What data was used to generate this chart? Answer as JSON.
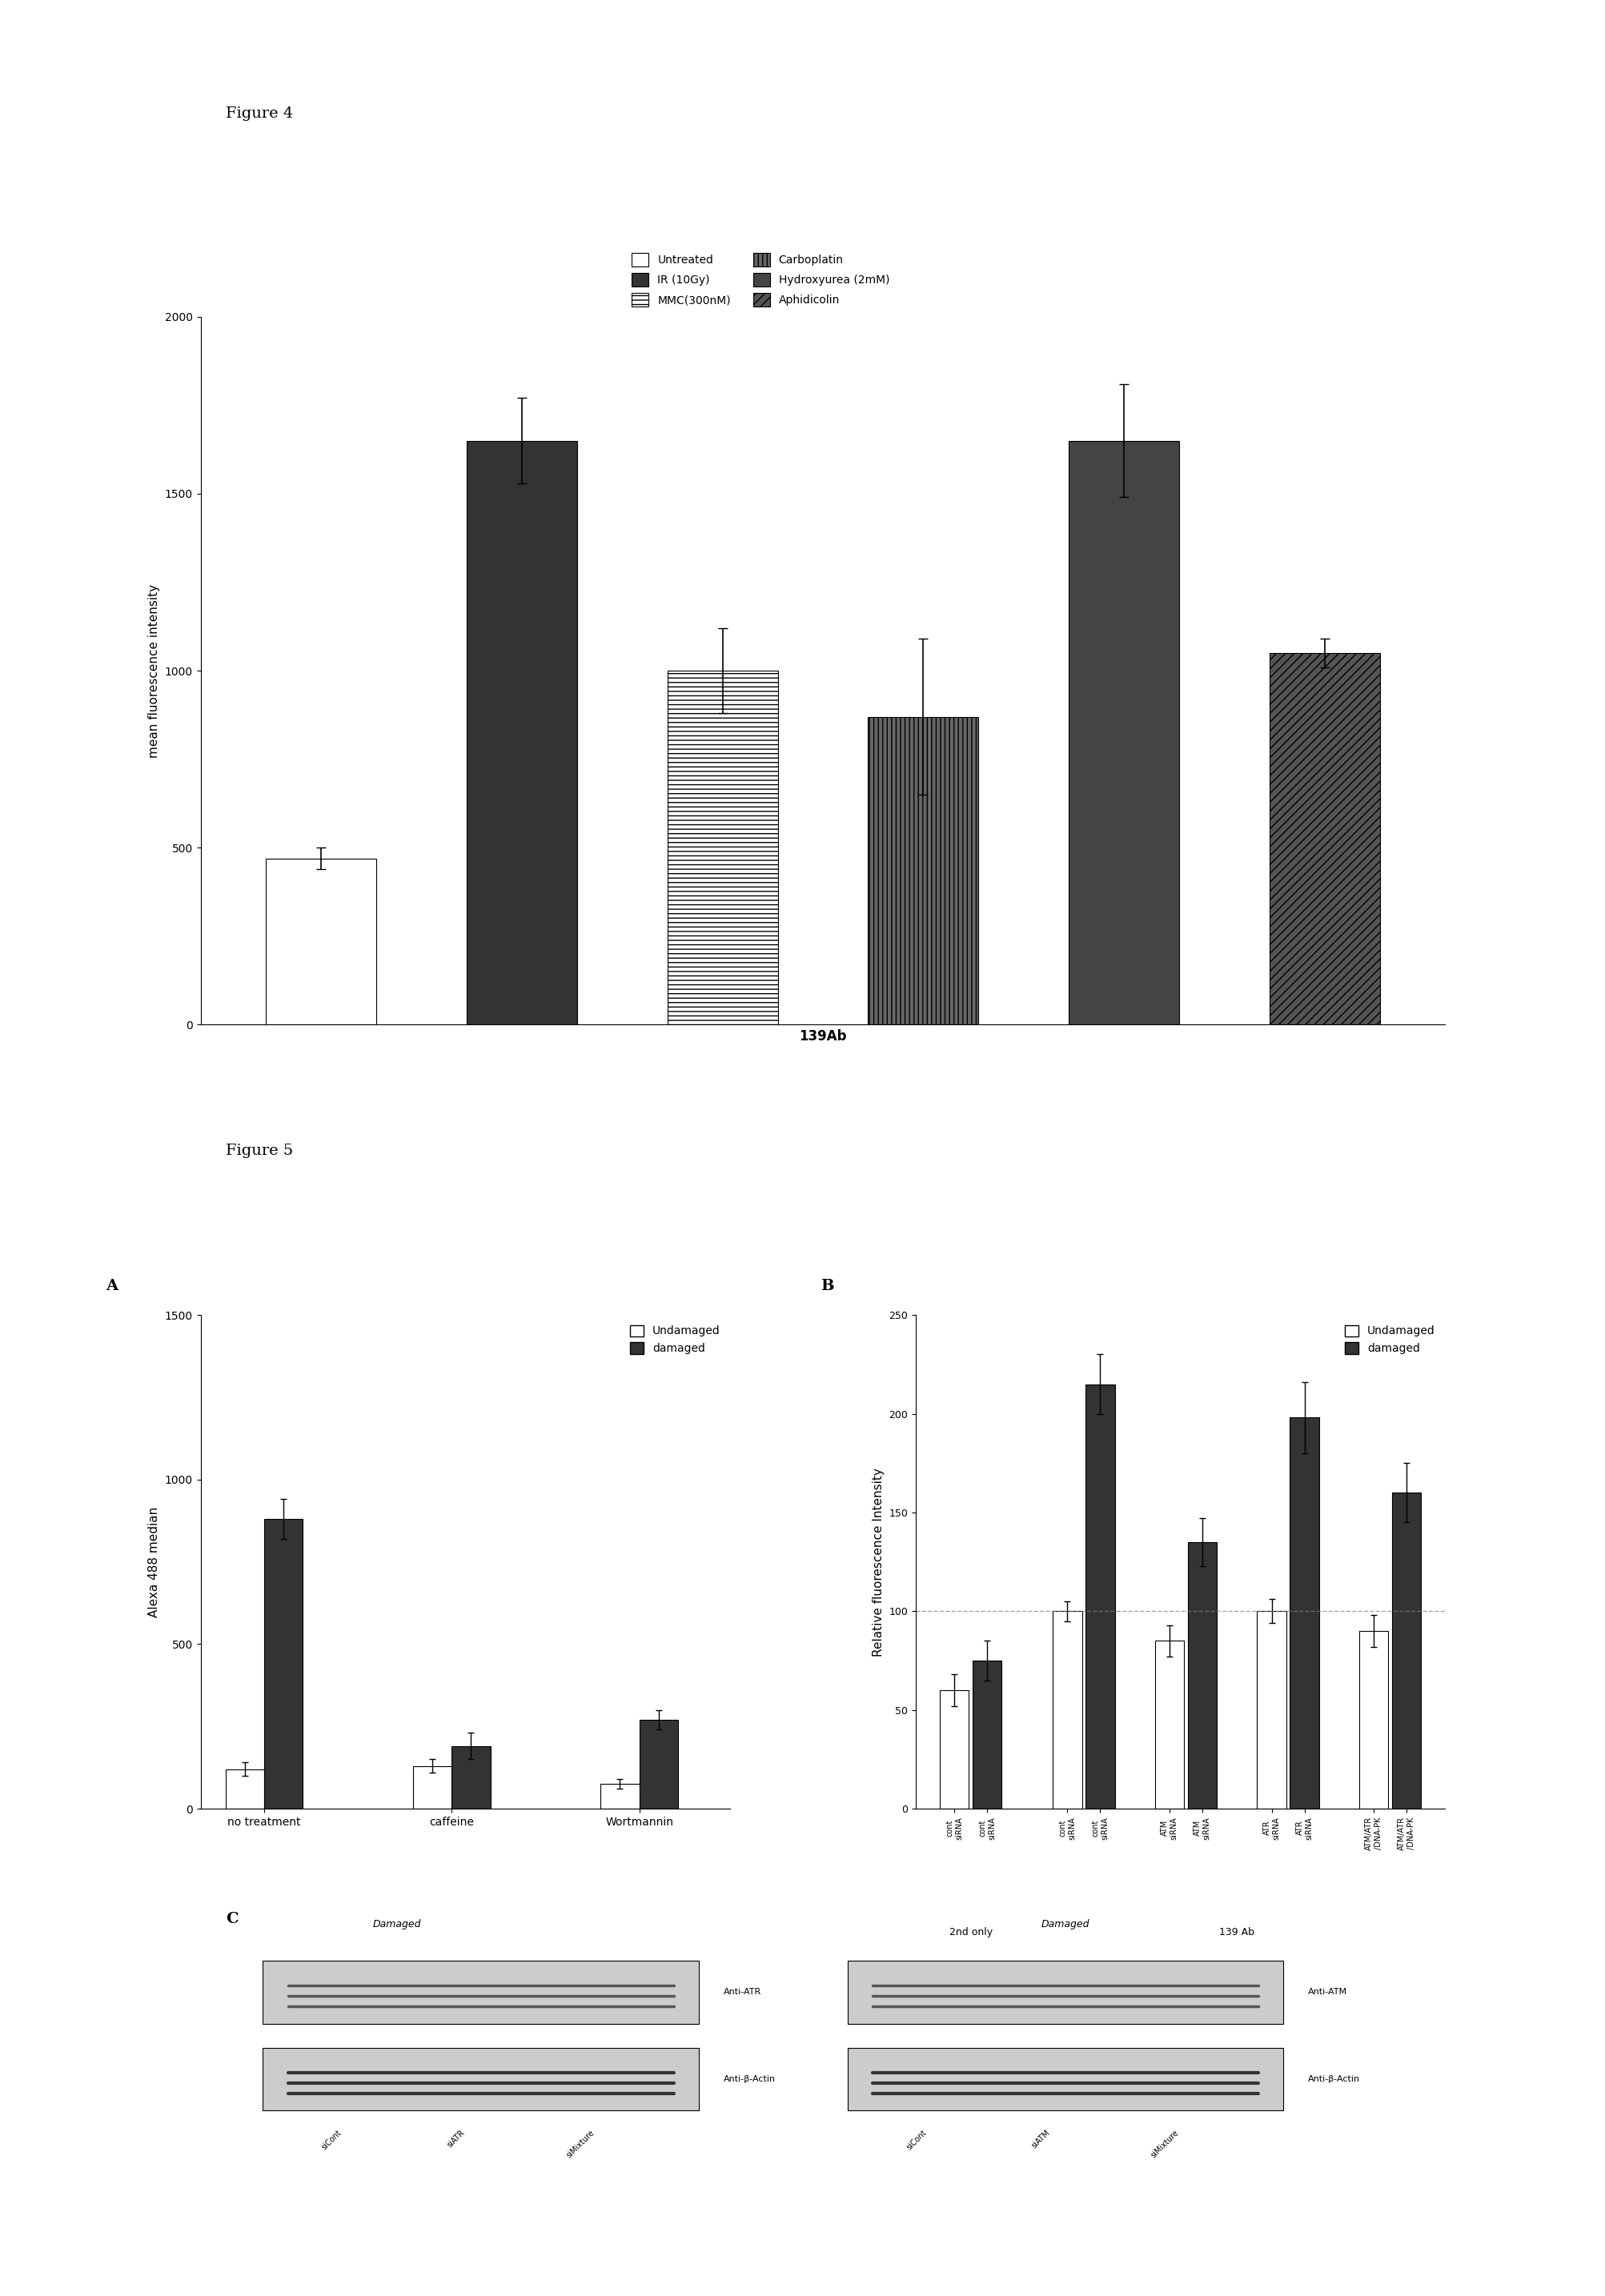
{
  "fig4": {
    "title": "Figure 4",
    "xlabel": "139Ab",
    "ylabel": "mean fluorescence intensity",
    "ylim": [
      0,
      2000
    ],
    "yticks": [
      0,
      500,
      1000,
      1500,
      2000
    ],
    "bars": [
      {
        "label": "Untreated",
        "value": 470,
        "error": 30,
        "color": "white",
        "hatch": "",
        "edgecolor": "black"
      },
      {
        "label": "IR (10Gy)",
        "value": 1650,
        "error": 120,
        "color": "#333333",
        "hatch": "",
        "edgecolor": "black"
      },
      {
        "label": "MMC(300nM)",
        "value": 1000,
        "error": 120,
        "color": "white",
        "hatch": "---",
        "edgecolor": "black"
      },
      {
        "label": "Carboplatin",
        "value": 870,
        "error": 220,
        "color": "#666666",
        "hatch": "|||",
        "edgecolor": "black"
      },
      {
        "label": "Hydroxyurea (2mM)",
        "value": 1650,
        "error": 160,
        "color": "#444444",
        "hatch": "",
        "edgecolor": "black"
      },
      {
        "label": "Aphidicolin",
        "value": 1050,
        "error": 40,
        "color": "#555555",
        "hatch": "///",
        "edgecolor": "black"
      }
    ],
    "legend_order": [
      0,
      1,
      2,
      3,
      4,
      5
    ]
  },
  "fig5a": {
    "panel": "A",
    "xlabel_groups": [
      "no treatment",
      "caffeine",
      "Wortmannin"
    ],
    "ylabel": "Alexa 488 median",
    "ylim": [
      0,
      1500
    ],
    "yticks": [
      0,
      500,
      1000,
      1500
    ],
    "groups": [
      {
        "name": "no treatment",
        "undamaged": 120,
        "undamaged_err": 20,
        "damaged": 880,
        "damaged_err": 60
      },
      {
        "name": "caffeine",
        "undamaged": 130,
        "undamaged_err": 20,
        "damaged": 190,
        "damaged_err": 40
      },
      {
        "name": "Wortmannin",
        "undamaged": 75,
        "undamaged_err": 15,
        "damaged": 270,
        "damaged_err": 30
      }
    ],
    "bar_colors": {
      "undamaged": "white",
      "damaged": "#333333"
    },
    "legend": [
      "Undamaged",
      "damaged"
    ]
  },
  "fig5b": {
    "panel": "B",
    "ylabel": "Relative fluorescence Intensity",
    "ylim": [
      0,
      250
    ],
    "yticks": [
      0,
      50,
      100,
      150,
      200,
      250
    ],
    "dashed_line": 100,
    "groups": [
      {
        "label": "cont siRNA\n(undamaged)",
        "value": 60,
        "err": 8,
        "color": "white",
        "group": "2nd only"
      },
      {
        "label": "cont siRNA\n(damaged)",
        "value": 75,
        "err": 10,
        "color": "#333333",
        "group": "2nd only"
      },
      {
        "label": "cont siRNA\n(undamaged)",
        "value": 100,
        "err": 5,
        "color": "white",
        "group": "139 Ab"
      },
      {
        "label": "cont siRNA\n(damaged)",
        "value": 215,
        "err": 15,
        "color": "#333333",
        "group": "139 Ab"
      },
      {
        "label": "ATM siRNA\n(undamaged)",
        "value": 85,
        "err": 8,
        "color": "white",
        "group": "139 Ab"
      },
      {
        "label": "ATM siRNA\n(damaged)",
        "value": 135,
        "err": 12,
        "color": "#333333",
        "group": "139 Ab"
      },
      {
        "label": "ATR siRNA\n(undamaged)",
        "value": 100,
        "err": 6,
        "color": "white",
        "group": "139 Ab"
      },
      {
        "label": "ATR siRNA\n(damaged)",
        "value": 198,
        "err": 18,
        "color": "#333333",
        "group": "139 Ab"
      },
      {
        "label": "ATM/ATR/DNA-PK\n(undamaged)",
        "value": 90,
        "err": 8,
        "color": "white",
        "group": "139 Ab"
      },
      {
        "label": "ATM/ATR/DNA-PK\n(damaged)",
        "value": 160,
        "err": 15,
        "color": "#333333",
        "group": "139 Ab"
      }
    ],
    "xtick_labels": [
      "cont\nsiRNA",
      "cont\nsiRNA",
      "cont\nsiRNA",
      "cont\nsiRNA",
      "ATM\nsiRNA",
      "ATM\nsiRNA",
      "ATR\nsiRNA",
      "ATR\nsiRNA",
      "ATM/A\nTR/DN\nA-PK",
      "ATM/A\nTR/DN\nA-PK"
    ],
    "section_labels": [
      "2nd only",
      "139 Ab"
    ]
  },
  "background_color": "#ffffff",
  "figure_label_fontsize": 14,
  "panel_label_fontsize": 14,
  "axis_label_fontsize": 11,
  "tick_fontsize": 10
}
